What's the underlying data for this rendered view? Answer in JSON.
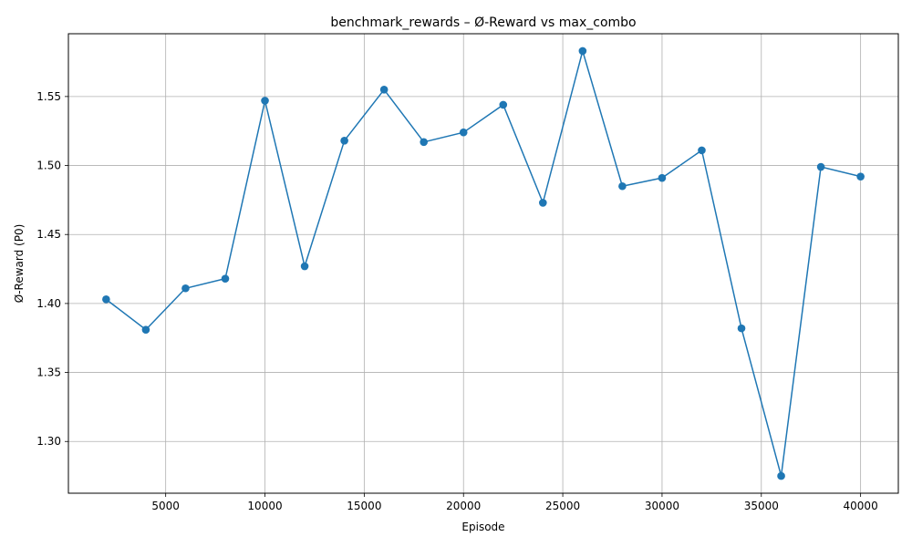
{
  "chart_data": {
    "type": "line",
    "title": "benchmark_rewards – Ø-Reward vs max_combo",
    "xlabel": "Episode",
    "ylabel": "Ø-Reward (P0)",
    "xlim": [
      100,
      41900
    ],
    "ylim": [
      1.2625,
      1.5955
    ],
    "xticks": [
      5000,
      10000,
      15000,
      20000,
      25000,
      30000,
      35000,
      40000
    ],
    "xtick_labels": [
      "5000",
      "10000",
      "15000",
      "20000",
      "25000",
      "30000",
      "35000",
      "40000"
    ],
    "yticks": [
      1.3,
      1.35,
      1.4,
      1.45,
      1.5,
      1.55
    ],
    "ytick_labels": [
      "1.30",
      "1.35",
      "1.40",
      "1.45",
      "1.50",
      "1.55"
    ],
    "grid": true,
    "color": "#1f77b4",
    "marker": "circle",
    "x": [
      2000,
      4000,
      6000,
      8000,
      10000,
      12000,
      14000,
      16000,
      18000,
      20000,
      22000,
      24000,
      26000,
      28000,
      30000,
      32000,
      34000,
      36000,
      38000,
      40000
    ],
    "values": [
      1.403,
      1.381,
      1.411,
      1.418,
      1.547,
      1.427,
      1.518,
      1.555,
      1.517,
      1.524,
      1.544,
      1.473,
      1.583,
      1.485,
      1.491,
      1.511,
      1.382,
      1.275,
      1.499,
      1.492
    ]
  }
}
